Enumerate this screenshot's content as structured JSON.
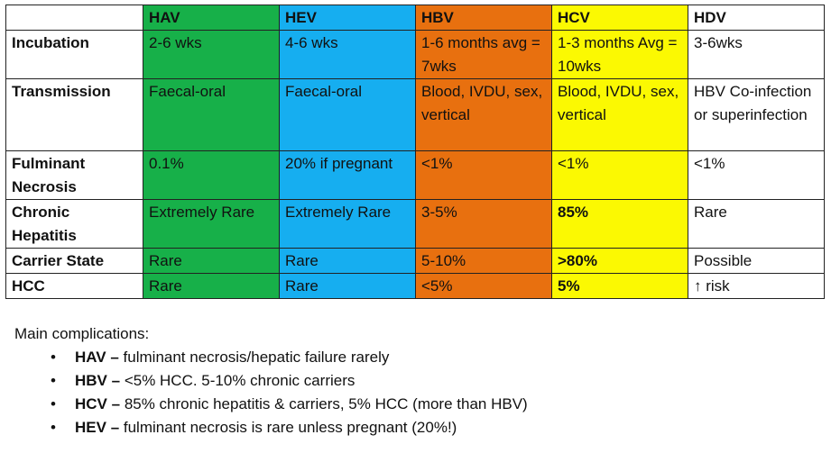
{
  "table": {
    "headers": [
      "",
      "HAV",
      "HEV",
      "HBV",
      "HCV",
      "HDV"
    ],
    "header_colors": [
      "#ffffff",
      "#17b049",
      "#16aef0",
      "#e8700f",
      "#fbf902",
      "#ffffff"
    ],
    "rows": [
      {
        "label": "Incubation",
        "cells": [
          "2-6 wks",
          "4-6 wks",
          "1-6 months avg = 7wks",
          "1-3 months Avg = 10wks",
          "3-6wks"
        ]
      },
      {
        "label": "Transmission",
        "cells": [
          "Faecal-oral",
          "Faecal-oral",
          "Blood, IVDU, sex, vertical",
          "Blood, IVDU, sex, vertical",
          "HBV Co-infection or superinfection"
        ]
      },
      {
        "label": "Fulminant Necrosis",
        "cells": [
          "0.1%",
          "20% if pregnant",
          "<1%",
          "<1%",
          "<1%"
        ]
      },
      {
        "label": "Chronic Hepatitis",
        "cells": [
          "Extremely Rare",
          "Extremely Rare",
          "3-5%",
          "85%",
          "Rare"
        ]
      },
      {
        "label": "Carrier State",
        "cells": [
          "Rare",
          "Rare",
          "5-10%",
          ">80%",
          "Possible"
        ]
      },
      {
        "label": "HCC",
        "cells": [
          "Rare",
          "Rare",
          "<5%",
          "5%",
          "↑ risk"
        ]
      }
    ]
  },
  "notes": {
    "heading": "Main complications:",
    "bullet_char": "•",
    "items": [
      {
        "key": "HAV",
        "sep": " – ",
        "text": "fulminant necrosis/hepatic failure rarely"
      },
      {
        "key": "HBV",
        "sep": " – ",
        "text": "<5% HCC. 5-10% chronic carriers"
      },
      {
        "key": "HCV",
        "sep": " – ",
        "text": "85% chronic hepatitis & carriers, 5% HCC (more than HBV)"
      },
      {
        "key": "HEV",
        "sep": " – ",
        "text": "fulminant necrosis is rare unless pregnant (20%!)"
      }
    ]
  }
}
